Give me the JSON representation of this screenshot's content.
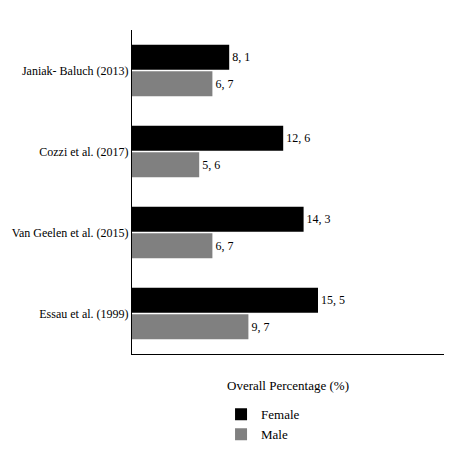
{
  "chart_data": {
    "type": "bar",
    "orientation": "horizontal",
    "categories": [
      "Janiak- Baluch (2013)",
      "Cozzi et al. (2017)",
      "Van Geelen et al. (2015)",
      "Essau et al. (1999)"
    ],
    "series": [
      {
        "name": "Female",
        "color": "#000000",
        "values": [
          8.1,
          12.6,
          14.3,
          15.5
        ],
        "value_labels": [
          "8, 1",
          "12, 6",
          "14, 3",
          "15, 5"
        ]
      },
      {
        "name": "Male",
        "color": "#808080",
        "values": [
          6.7,
          5.6,
          6.7,
          9.7
        ],
        "value_labels": [
          "6, 7",
          "5, 6",
          "6, 7",
          "9, 7"
        ]
      }
    ],
    "xlabel": "Overall Percentage (%)",
    "xlim": [
      0,
      26
    ],
    "xticks": [],
    "data_labels": true,
    "tick_labels": "y",
    "legend": "bottom",
    "grid": false
  }
}
